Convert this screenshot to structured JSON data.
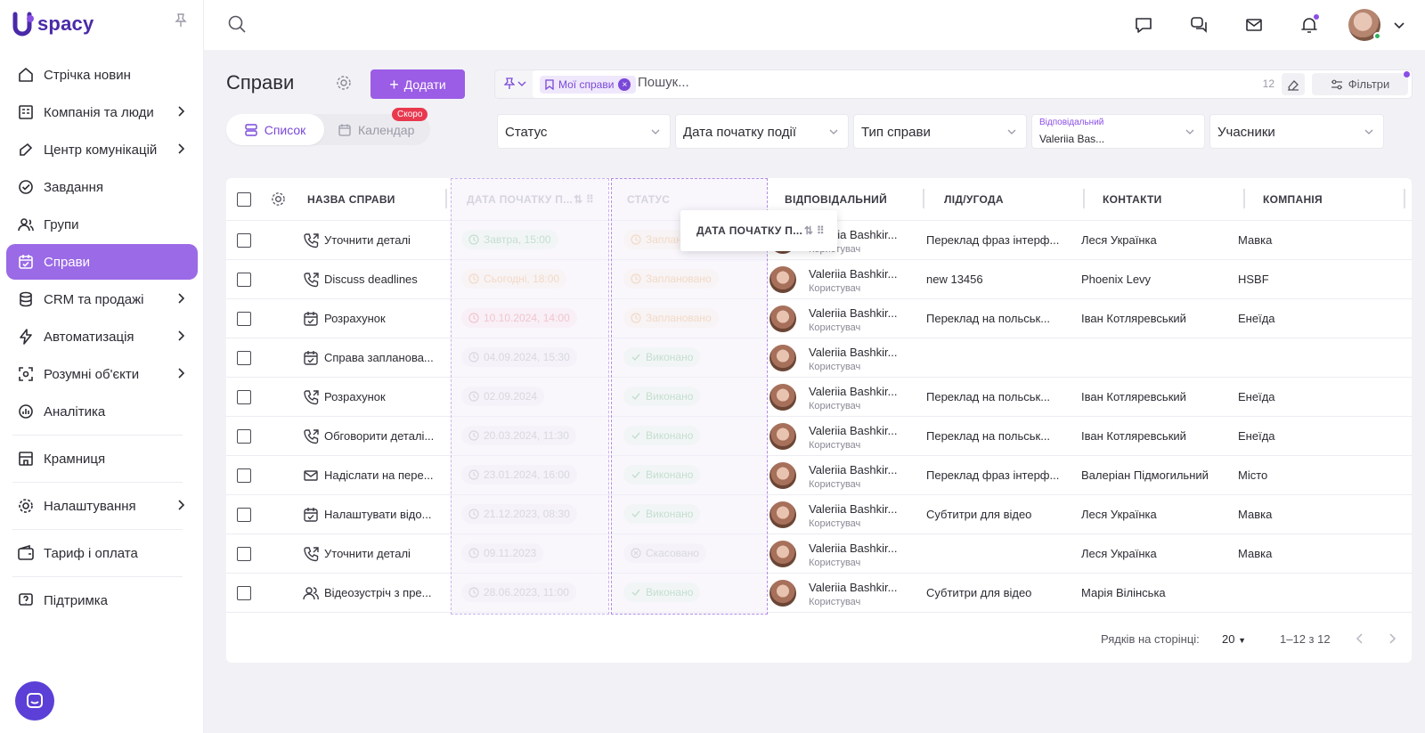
{
  "app": {
    "logo_text": "spacy"
  },
  "sidebar": {
    "items": [
      {
        "label": "Стрічка новин",
        "icon": "home-icon",
        "chevron": false,
        "active": false
      },
      {
        "label": "Компанія та люди",
        "icon": "company-icon",
        "chevron": true,
        "active": false
      },
      {
        "label": "Центр комунікацій",
        "icon": "communications-icon",
        "chevron": true,
        "active": false
      },
      {
        "label": "Завдання",
        "icon": "tasks-icon",
        "chevron": false,
        "active": false
      },
      {
        "label": "Групи",
        "icon": "groups-icon",
        "chevron": false,
        "active": false
      },
      {
        "label": "Справи",
        "icon": "calendar-check-icon",
        "chevron": false,
        "active": true
      },
      {
        "label": "CRM та продажі",
        "icon": "crm-icon",
        "chevron": true,
        "active": false
      },
      {
        "label": "Автоматизація",
        "icon": "automation-icon",
        "chevron": true,
        "active": false
      },
      {
        "label": "Розумні об'єкти",
        "icon": "smart-objects-icon",
        "chevron": true,
        "active": false
      },
      {
        "label": "Аналітика",
        "icon": "analytics-icon",
        "chevron": false,
        "active": false
      },
      {
        "label": "Крамниця",
        "icon": "store-icon",
        "chevron": false,
        "active": false
      },
      {
        "label": "Налаштування",
        "icon": "gear-icon",
        "chevron": true,
        "active": false
      },
      {
        "label": "Тариф і оплата",
        "icon": "wallet-icon",
        "chevron": false,
        "active": false
      },
      {
        "label": "Підтримка",
        "icon": "support-icon",
        "chevron": false,
        "active": false
      }
    ]
  },
  "header": {
    "title": "Справи",
    "add_label": "Додати",
    "view_list": "Список",
    "view_calendar": "Календар",
    "soon_badge": "Скоро"
  },
  "search": {
    "chip": "Мої справи",
    "placeholder": "Пошук...",
    "count": "12",
    "filters_label": "Фільтри"
  },
  "filters": {
    "status": "Статус",
    "start_date": "Дата початку події",
    "type": "Тип справи",
    "responsible_label": "Відповідальний",
    "responsible_value": "Valeriia Bas...",
    "participants": "Учасники"
  },
  "table": {
    "headers": {
      "name": "НАЗВА СПРАВИ",
      "start": "ДАТА ПОЧАТКУ П...",
      "status": "СТАТУС",
      "responsible": "ВІДПОВІДАЛЬНИЙ",
      "lead": "ЛІД/УГОДА",
      "contacts": "КОНТАКТИ",
      "company": "КОМПАНІЯ"
    },
    "drag_ghost": "ДАТА ПОЧАТКУ П...",
    "rows": [
      {
        "icon": "phone-icon",
        "name": "Уточнити деталі",
        "date": "Завтра, 15:00",
        "date_color": "green",
        "status": "Заплановано",
        "status_color": "orange",
        "resp": "Valeriia Bashkir...",
        "role": "Користувач",
        "lead": "Переклад фраз інтерф...",
        "contact": "Леся Українка",
        "company": "Мавка"
      },
      {
        "icon": "phone-icon",
        "name": "Discuss deadlines",
        "date": "Сьогодні, 18:00",
        "date_color": "orange",
        "status": "Заплановано",
        "status_color": "orange",
        "resp": "Valeriia Bashkir...",
        "role": "Користувач",
        "lead": "new 13456",
        "contact": "Phoenix Levy",
        "company": "HSBF"
      },
      {
        "icon": "calendar-icon",
        "name": "Розрахунок",
        "date": "10.10.2024, 14:00",
        "date_color": "red",
        "status": "Заплановано",
        "status_color": "orange",
        "resp": "Valeriia Bashkir...",
        "role": "Користувач",
        "lead": "Переклад на польськ...",
        "contact": "Іван Котляревський",
        "company": "Енеїда"
      },
      {
        "icon": "calendar-icon",
        "name": "Справа запланова...",
        "date": "04.09.2024, 15:30",
        "date_color": "gray",
        "status": "Виконано",
        "status_color": "green",
        "resp": "Valeriia Bashkir...",
        "role": "Користувач",
        "lead": "",
        "contact": "",
        "company": ""
      },
      {
        "icon": "phone-icon",
        "name": "Розрахунок",
        "date": "02.09.2024",
        "date_color": "gray",
        "status": "Виконано",
        "status_color": "green",
        "resp": "Valeriia Bashkir...",
        "role": "Користувач",
        "lead": "Переклад на польськ...",
        "contact": "Іван Котляревський",
        "company": "Енеїда"
      },
      {
        "icon": "phone-icon",
        "name": "Обговорити деталі...",
        "date": "20.03.2024, 11:30",
        "date_color": "gray",
        "status": "Виконано",
        "status_color": "green",
        "resp": "Valeriia Bashkir...",
        "role": "Користувач",
        "lead": "Переклад на польськ...",
        "contact": "Іван Котляревський",
        "company": "Енеїда"
      },
      {
        "icon": "mail-icon",
        "name": "Надіслати на пере...",
        "date": "23.01.2024, 16:00",
        "date_color": "gray",
        "status": "Виконано",
        "status_color": "green",
        "resp": "Valeriia Bashkir...",
        "role": "Користувач",
        "lead": "Переклад фраз інтерф...",
        "contact": "Валеріан Підмогильний",
        "company": "Місто"
      },
      {
        "icon": "calendar-icon",
        "name": "Налаштувати відо...",
        "date": "21.12.2023, 08:30",
        "date_color": "gray",
        "status": "Виконано",
        "status_color": "green",
        "resp": "Valeriia Bashkir...",
        "role": "Користувач",
        "lead": "Субтитри для відео",
        "contact": "Леся Українка",
        "company": "Мавка"
      },
      {
        "icon": "phone-icon",
        "name": "Уточнити деталі",
        "date": "09.11.2023",
        "date_color": "gray",
        "status": "Скасовано",
        "status_color": "gray",
        "resp": "Valeriia Bashkir...",
        "role": "Користувач",
        "lead": "",
        "contact": "Леся Українка",
        "company": "Мавка"
      },
      {
        "icon": "people-icon",
        "name": "Відеозустріч з пре...",
        "date": "28.06.2023, 11:00",
        "date_color": "gray",
        "status": "Виконано",
        "status_color": "green",
        "resp": "Valeriia Bashkir...",
        "role": "Користувач",
        "lead": "Субтитри для відео",
        "contact": "Марія Вілінська",
        "company": ""
      }
    ]
  },
  "pager": {
    "rows_label": "Рядків на сторінці:",
    "rows_value": "20",
    "range": "1–12 з 12"
  },
  "colors": {
    "accent": "#9b5ce6",
    "active_nav": "#9b6ae6",
    "brand": "#4a2aa8"
  }
}
